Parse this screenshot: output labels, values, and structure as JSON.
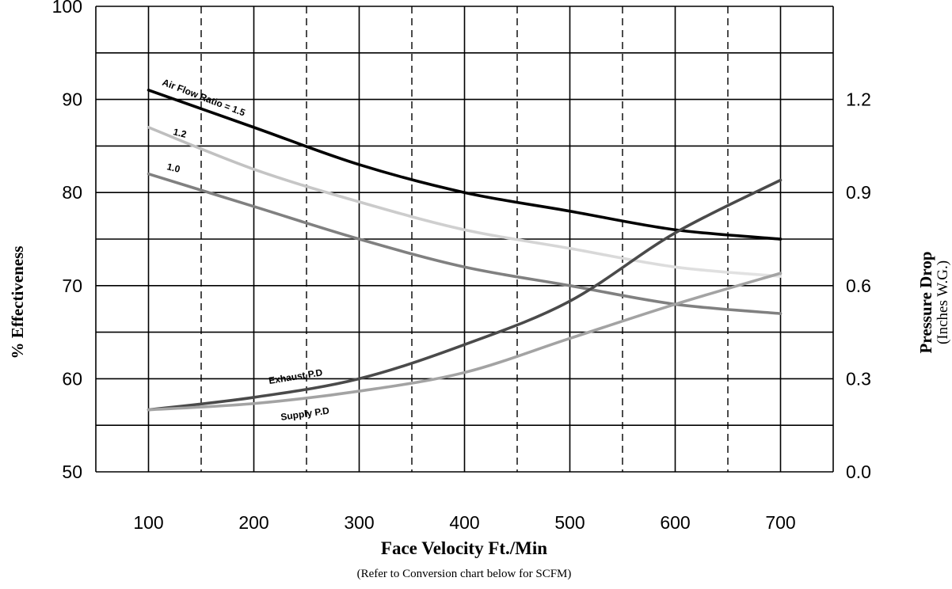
{
  "chart_data": {
    "type": "line",
    "x_axis": {
      "label": "Face Velocity Ft./Min",
      "sublabel": "(Refer to Conversion chart below for SCFM)",
      "range": [
        50,
        750
      ],
      "ticks": [
        100,
        200,
        300,
        400,
        500,
        600,
        700
      ],
      "tick_labels": [
        "100",
        "200",
        "300",
        "400",
        "500",
        "600",
        "700"
      ],
      "grid_solid": [
        50,
        100,
        200,
        300,
        400,
        500,
        600,
        700,
        750
      ],
      "grid_dashed": [
        150,
        250,
        350,
        450,
        550,
        650
      ]
    },
    "y_axis_left": {
      "label": "% Effectiveness",
      "range": [
        50,
        100
      ],
      "ticks": [
        50,
        60,
        70,
        80,
        90,
        100
      ],
      "tick_labels": [
        "50",
        "60",
        "70",
        "80",
        "90",
        "100"
      ],
      "grid": [
        50,
        55,
        60,
        65,
        70,
        75,
        80,
        85,
        90,
        95,
        100
      ]
    },
    "y_axis_right": {
      "label": "Pressure Drop",
      "sublabel": "(Inches W.G.)",
      "range": [
        0.0,
        1.5
      ],
      "ticks": [
        0.0,
        0.3,
        0.6,
        0.9,
        1.2
      ],
      "tick_labels": [
        "0.0",
        "0.3",
        "0.6",
        "0.9",
        "1.2"
      ]
    },
    "series": [
      {
        "name": "Air Flow Ratio = 1.5",
        "axis": "left",
        "color": "#000000",
        "x": [
          100,
          200,
          300,
          400,
          500,
          600,
          700
        ],
        "y": [
          91,
          87,
          83,
          80,
          78,
          76,
          75
        ]
      },
      {
        "name": "1.2",
        "axis": "left",
        "color": "#bdbdbd",
        "color_end": "#e4e4e4",
        "x": [
          100,
          200,
          300,
          400,
          500,
          600,
          700
        ],
        "y": [
          87,
          82.5,
          79,
          76,
          74,
          72,
          71
        ]
      },
      {
        "name": "1.0",
        "axis": "left",
        "color": "#808080",
        "x": [
          100,
          200,
          300,
          400,
          500,
          600,
          700
        ],
        "y": [
          82,
          78.5,
          75,
          72,
          70,
          68,
          67
        ]
      },
      {
        "name": "Exhaust P.D",
        "axis": "right",
        "color": "#4a4a4a",
        "x": [
          100,
          200,
          300,
          400,
          500,
          600,
          700
        ],
        "y": [
          0.2,
          0.24,
          0.3,
          0.41,
          0.55,
          0.77,
          0.94
        ]
      },
      {
        "name": "Supply P.D",
        "axis": "right",
        "color": "#a3a3a3",
        "x": [
          100,
          200,
          300,
          400,
          500,
          600,
          700
        ],
        "y": [
          0.2,
          0.22,
          0.26,
          0.32,
          0.43,
          0.54,
          0.64
        ]
      }
    ]
  }
}
